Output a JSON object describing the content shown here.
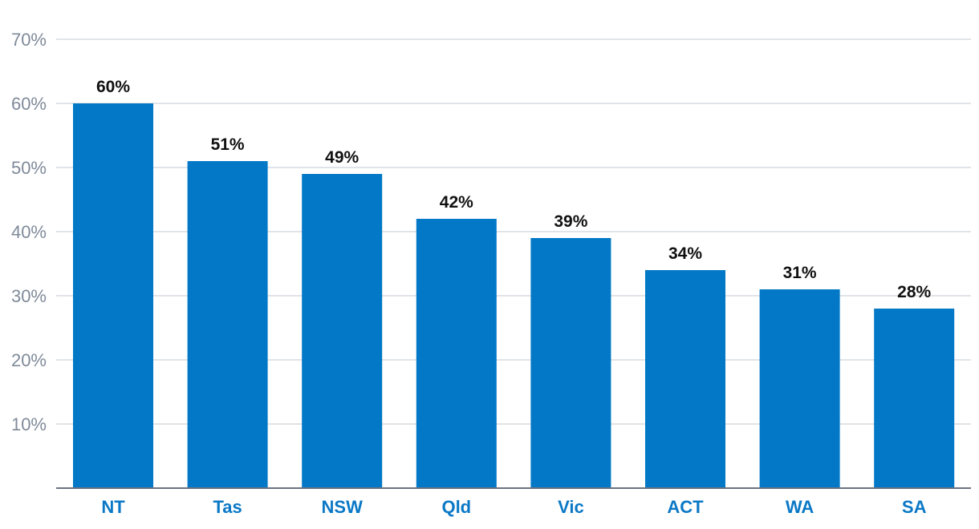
{
  "chart_data": {
    "type": "bar",
    "categories": [
      "NT",
      "Tas",
      "NSW",
      "Qld",
      "Vic",
      "ACT",
      "WA",
      "SA"
    ],
    "values": [
      60,
      51,
      49,
      42,
      39,
      34,
      31,
      28
    ],
    "value_labels": [
      "60%",
      "51%",
      "49%",
      "42%",
      "39%",
      "34%",
      "31%",
      "28%"
    ],
    "title": "",
    "xlabel": "",
    "ylabel": "",
    "ylim": [
      0,
      70
    ],
    "yticks": [
      10,
      20,
      30,
      40,
      50,
      60,
      70
    ],
    "ytick_labels": [
      "10%",
      "20%",
      "30%",
      "40%",
      "50%",
      "60%",
      "70%"
    ],
    "grid": true,
    "legend": "none",
    "colors": {
      "bar": "#0278c6",
      "category_label": "#0a78c6",
      "tick_label": "#7f8a9a",
      "grid": "#d6dbe1",
      "data_label": "#111111"
    }
  }
}
